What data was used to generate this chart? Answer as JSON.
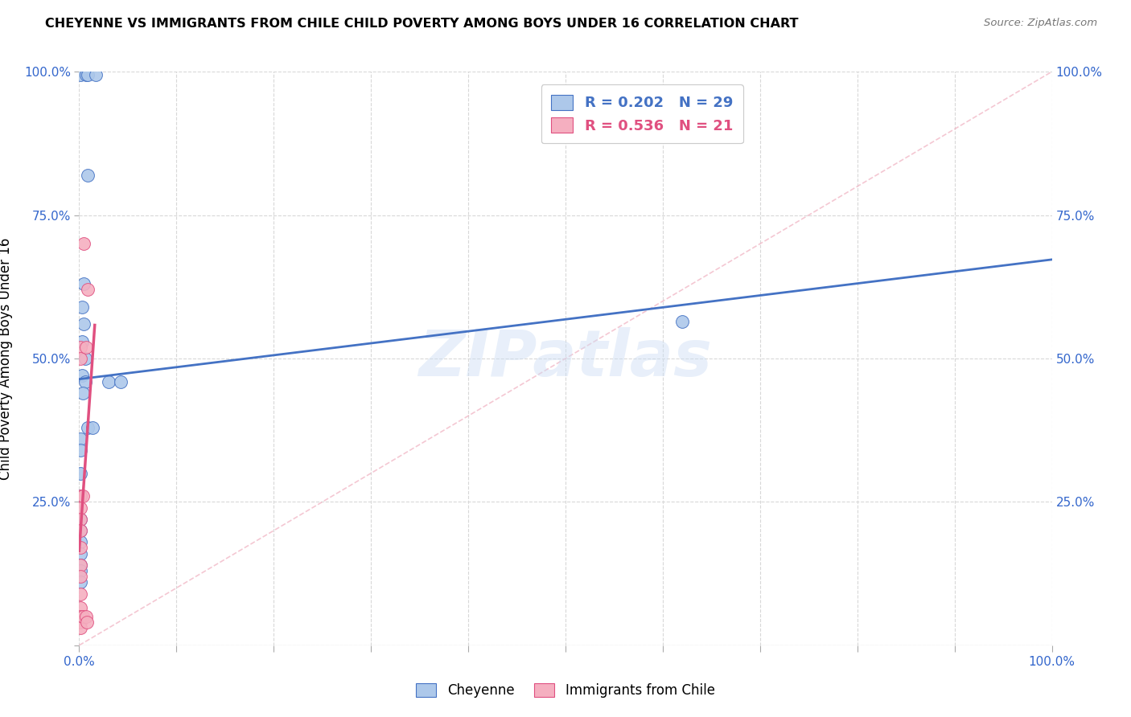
{
  "title": "CHEYENNE VS IMMIGRANTS FROM CHILE CHILD POVERTY AMONG BOYS UNDER 16 CORRELATION CHART",
  "source": "Source: ZipAtlas.com",
  "ylabel": "Child Poverty Among Boys Under 16",
  "watermark": "ZIPatlas",
  "blue_label": "Cheyenne",
  "pink_label": "Immigrants from Chile",
  "blue_R": 0.202,
  "blue_N": 29,
  "pink_R": 0.536,
  "pink_N": 21,
  "blue_color": "#adc8ea",
  "pink_color": "#f5afc0",
  "blue_line_color": "#4472c4",
  "pink_line_color": "#e05080",
  "blue_scatter": [
    [
      0.001,
      0.995
    ],
    [
      0.007,
      0.995
    ],
    [
      0.009,
      0.995
    ],
    [
      0.017,
      0.995
    ],
    [
      0.009,
      0.82
    ],
    [
      0.005,
      0.63
    ],
    [
      0.003,
      0.59
    ],
    [
      0.005,
      0.56
    ],
    [
      0.003,
      0.53
    ],
    [
      0.006,
      0.5
    ],
    [
      0.003,
      0.47
    ],
    [
      0.006,
      0.46
    ],
    [
      0.004,
      0.44
    ],
    [
      0.009,
      0.38
    ],
    [
      0.014,
      0.38
    ],
    [
      0.001,
      0.36
    ],
    [
      0.001,
      0.34
    ],
    [
      0.001,
      0.3
    ],
    [
      0.001,
      0.26
    ],
    [
      0.001,
      0.22
    ],
    [
      0.001,
      0.2
    ],
    [
      0.001,
      0.18
    ],
    [
      0.001,
      0.16
    ],
    [
      0.001,
      0.14
    ],
    [
      0.001,
      0.13
    ],
    [
      0.001,
      0.11
    ],
    [
      0.03,
      0.46
    ],
    [
      0.043,
      0.46
    ],
    [
      0.62,
      0.565
    ]
  ],
  "pink_scatter": [
    [
      0.001,
      0.52
    ],
    [
      0.001,
      0.5
    ],
    [
      0.005,
      0.7
    ],
    [
      0.009,
      0.62
    ],
    [
      0.007,
      0.52
    ],
    [
      0.001,
      0.26
    ],
    [
      0.004,
      0.26
    ],
    [
      0.001,
      0.24
    ],
    [
      0.001,
      0.22
    ],
    [
      0.001,
      0.2
    ],
    [
      0.001,
      0.17
    ],
    [
      0.001,
      0.14
    ],
    [
      0.001,
      0.12
    ],
    [
      0.001,
      0.09
    ],
    [
      0.001,
      0.065
    ],
    [
      0.001,
      0.05
    ],
    [
      0.001,
      0.04
    ],
    [
      0.001,
      0.03
    ],
    [
      0.004,
      0.05
    ],
    [
      0.007,
      0.05
    ],
    [
      0.008,
      0.04
    ]
  ],
  "xlim": [
    0.0,
    1.0
  ],
  "ylim": [
    0.0,
    1.0
  ],
  "xticks": [
    0.0,
    0.1,
    0.2,
    0.3,
    0.4,
    0.5,
    0.6,
    0.7,
    0.8,
    0.9,
    1.0
  ],
  "yticks": [
    0.0,
    0.25,
    0.5,
    0.75,
    1.0
  ],
  "background_color": "#ffffff",
  "grid_color": "#d8d8d8"
}
